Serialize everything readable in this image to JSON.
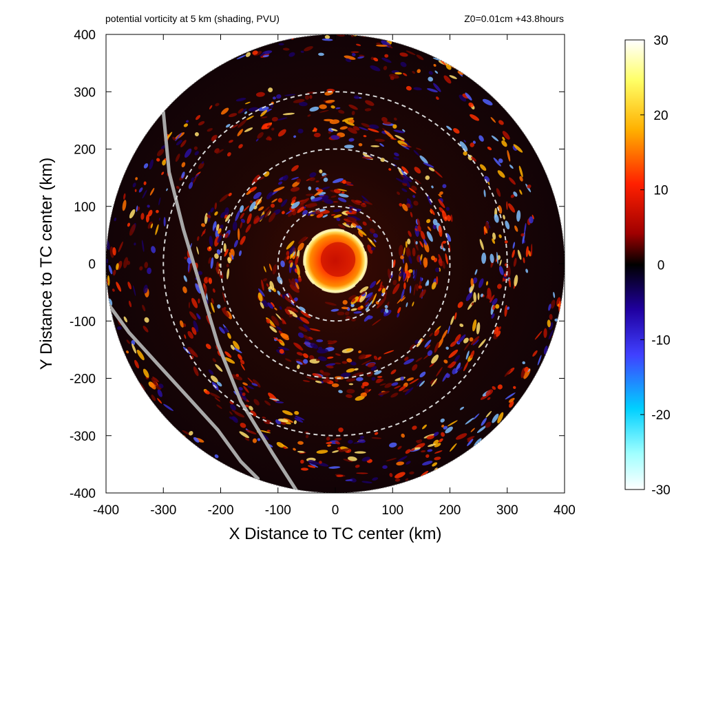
{
  "chart_data": {
    "type": "heatmap",
    "title_left": "potential vorticity at 5 km (shading, PVU)",
    "title_right": "Z0=0.01cm  +43.8hours",
    "xlabel": "X Distance to TC center (km)",
    "ylabel": "Y Distance to TC center (km)",
    "xlim": [
      -400,
      400
    ],
    "ylim": [
      -400,
      400
    ],
    "x_ticks": [
      "-400",
      "-300",
      "-200",
      "-100",
      "0",
      "100",
      "200",
      "300",
      "400"
    ],
    "y_ticks": [
      "-400",
      "-300",
      "-200",
      "-100",
      "0",
      "100",
      "200",
      "300",
      "400"
    ],
    "x_tick_values": [
      -400,
      -300,
      -200,
      -100,
      0,
      100,
      200,
      300,
      400
    ],
    "y_tick_values": [
      -400,
      -300,
      -200,
      -100,
      0,
      100,
      200,
      300,
      400
    ],
    "domain_radius_km": 400,
    "range_rings_km": [
      100,
      200,
      300
    ],
    "colorbar": {
      "range": [
        -30,
        30
      ],
      "tick_values": [
        30,
        20,
        10,
        0,
        -10,
        -20,
        -30
      ],
      "tick_labels": [
        "30",
        "20",
        "10",
        "0",
        "-10",
        "-20",
        "-30"
      ],
      "colors": [
        "#ffffff",
        "#ffff66",
        "#ffb000",
        "#ff2000",
        "#a00000",
        "#000000",
        "#2000a0",
        "#4040ff",
        "#00d0ff",
        "#a0ffff",
        "#ffffff"
      ]
    },
    "coastlines_km": [
      [
        [
          -300,
          265
        ],
        [
          -290,
          160
        ],
        [
          -265,
          60
        ],
        [
          -235,
          -40
        ],
        [
          -205,
          -140
        ],
        [
          -165,
          -240
        ],
        [
          -110,
          -330
        ],
        [
          -65,
          -400
        ]
      ],
      [
        [
          -400,
          -65
        ],
        [
          -360,
          -120
        ],
        [
          -310,
          -175
        ],
        [
          -255,
          -235
        ],
        [
          -205,
          -290
        ],
        [
          -165,
          -345
        ],
        [
          -135,
          -375
        ]
      ]
    ],
    "pv_core": {
      "center_km": [
        0,
        5
      ],
      "radius_km": 55,
      "eyewall_radius_km": 55
    }
  }
}
